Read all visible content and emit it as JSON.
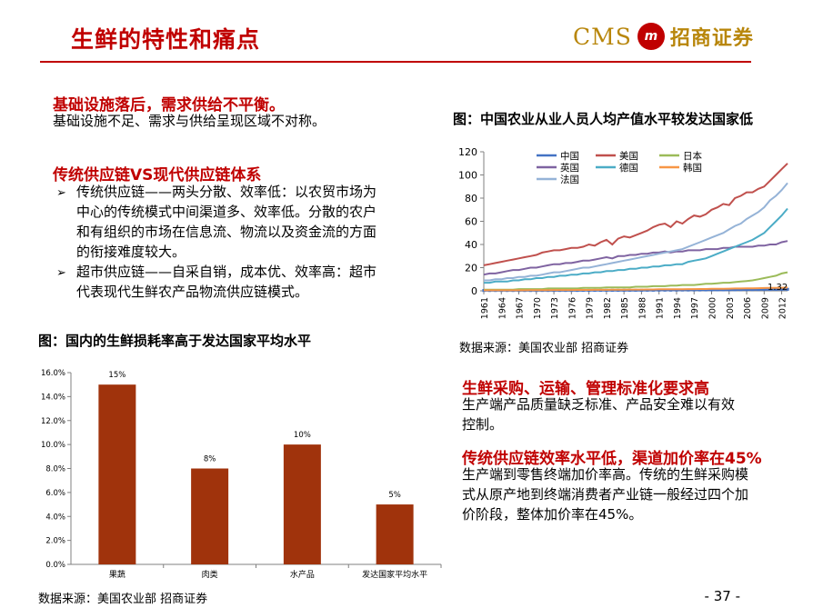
{
  "header": {
    "title": "生鲜的特性和痛点",
    "logo_latin": "CMS",
    "logo_seal": "m",
    "logo_cn": "招商证券"
  },
  "left": {
    "section1": {
      "heading": "基础设施落后，需求供给不平衡。",
      "body": "基础设施不足、需求与供给呈现区域不对称。"
    },
    "section2": {
      "heading": "传统供应链VS现代供应链体系",
      "bullets": [
        {
          "lines": [
            "传统供应链——两头分散、效率低：以农贸市场为",
            "中心的传统模式中间渠道多、效率低。分散的农户",
            "和有组织的市场在信息流、物流以及资金流的方面",
            "的衔接难度较大。"
          ]
        },
        {
          "lines": [
            "超市供应链——自采自销，成本优、效率高：超市",
            "代表现代生鲜农产品物流供应链模式。"
          ]
        }
      ]
    }
  },
  "right": {
    "section3": {
      "heading": "生鲜采购、运输、管理标准化要求高",
      "lines": [
        "生产端产品质量缺乏标准、产品安全难以有效",
        "控制。"
      ]
    },
    "section4": {
      "heading": "传统供应链效率水平低，渠道加价率在45%",
      "lines": [
        "生产端到零售终端加价率高。传统的生鲜采购模",
        "式从原产地到终端消费者产业链一般经过四个加",
        "价阶段，整体加价率在45%。"
      ]
    }
  },
  "footer": {
    "page": "- 37 -"
  },
  "chart_data": [
    {
      "type": "line",
      "title": "图：中国农业从业人员人均产值水平较发达国家低",
      "source": "数据来源：美国农业部 招商证券",
      "ylim": [
        0,
        120
      ],
      "yticks": [
        "0",
        "20",
        "40",
        "60",
        "80",
        "100",
        "120"
      ],
      "x": [
        1961,
        1962,
        1963,
        1964,
        1965,
        1966,
        1967,
        1968,
        1969,
        1970,
        1971,
        1972,
        1973,
        1974,
        1975,
        1976,
        1977,
        1978,
        1979,
        1980,
        1981,
        1982,
        1983,
        1984,
        1985,
        1986,
        1987,
        1988,
        1989,
        1990,
        1991,
        1992,
        1993,
        1994,
        1995,
        1996,
        1997,
        1998,
        1999,
        2000,
        2001,
        2002,
        2003,
        2004,
        2005,
        2006,
        2007,
        2008,
        2009,
        2010,
        2011,
        2012,
        2013
      ],
      "xtick_labels": [
        "1961",
        "1964",
        "1967",
        "1970",
        "1973",
        "1976",
        "1979",
        "1982",
        "1985",
        "1988",
        "1991",
        "1994",
        "1997",
        "2000",
        "2003",
        "2006",
        "2009",
        "2012"
      ],
      "legend": [
        "中国",
        "美国",
        "日本",
        "英国",
        "德国",
        "韩国",
        "法国"
      ],
      "end_label": "1.32",
      "grid": false,
      "series": [
        {
          "name": "中国",
          "color": "#4472c4",
          "values": [
            0.3,
            0.3,
            0.3,
            0.3,
            0.3,
            0.3,
            0.3,
            0.3,
            0.3,
            0.3,
            0.35,
            0.35,
            0.35,
            0.35,
            0.35,
            0.35,
            0.35,
            0.4,
            0.4,
            0.4,
            0.4,
            0.45,
            0.45,
            0.45,
            0.5,
            0.5,
            0.5,
            0.5,
            0.55,
            0.55,
            0.6,
            0.6,
            0.6,
            0.65,
            0.7,
            0.7,
            0.75,
            0.75,
            0.8,
            0.8,
            0.85,
            0.85,
            0.9,
            0.95,
            1.0,
            1.0,
            1.05,
            1.1,
            1.15,
            1.2,
            1.25,
            1.3,
            1.32
          ]
        },
        {
          "name": "美国",
          "color": "#c0504d",
          "values": [
            22,
            23,
            24,
            25,
            26,
            27,
            28,
            29,
            30,
            31,
            33,
            34,
            35,
            35,
            36,
            37,
            37,
            38,
            40,
            39,
            42,
            44,
            40,
            45,
            47,
            46,
            48,
            50,
            52,
            55,
            57,
            58,
            55,
            60,
            58,
            62,
            65,
            64,
            66,
            70,
            72,
            75,
            74,
            80,
            82,
            85,
            85,
            88,
            90,
            95,
            100,
            105,
            110
          ]
        },
        {
          "name": "日本",
          "color": "#9bbb59",
          "values": [
            1,
            1,
            1,
            1,
            1,
            1,
            1.5,
            1.5,
            1.5,
            1.5,
            1.5,
            2,
            2,
            2,
            2,
            2,
            2,
            2.5,
            2.5,
            2.5,
            2.5,
            3,
            3,
            3,
            3,
            3,
            3.5,
            3.5,
            3.5,
            4,
            4,
            4,
            4.5,
            4.5,
            5,
            5,
            5,
            5.5,
            6,
            6,
            6.5,
            7,
            7,
            7.5,
            8,
            8.5,
            9,
            10,
            11,
            12,
            13,
            15,
            16
          ]
        },
        {
          "name": "英国",
          "color": "#7f63a1",
          "values": [
            14,
            15,
            15,
            16,
            17,
            18,
            18,
            19,
            20,
            20,
            21,
            22,
            23,
            23,
            24,
            24,
            25,
            26,
            26,
            27,
            28,
            29,
            28,
            30,
            30,
            31,
            31,
            32,
            32,
            33,
            33,
            34,
            33,
            34,
            34,
            35,
            35,
            35,
            36,
            36,
            36,
            37,
            37,
            38,
            38,
            38,
            38,
            39,
            39,
            40,
            40,
            42,
            43
          ]
        },
        {
          "name": "德国",
          "color": "#4bacc6",
          "values": [
            7,
            7,
            8,
            8,
            8,
            9,
            9,
            10,
            10,
            11,
            11,
            12,
            12,
            13,
            13,
            14,
            14,
            15,
            15,
            16,
            16,
            17,
            17,
            18,
            18,
            19,
            19,
            20,
            20,
            21,
            21,
            22,
            22,
            23,
            23,
            25,
            26,
            27,
            28,
            30,
            32,
            34,
            36,
            38,
            40,
            42,
            44,
            47,
            50,
            55,
            60,
            65,
            71
          ]
        },
        {
          "name": "韩国",
          "color": "#f79646",
          "values": [
            0.5,
            0.5,
            0.5,
            0.5,
            0.5,
            0.5,
            0.5,
            0.5,
            0.6,
            0.6,
            0.6,
            0.6,
            0.7,
            0.7,
            0.7,
            0.7,
            0.8,
            0.8,
            0.8,
            0.9,
            0.9,
            0.9,
            1.0,
            1.0,
            1.0,
            1.1,
            1.1,
            1.1,
            1.2,
            1.2,
            1.3,
            1.3,
            1.3,
            1.4,
            1.4,
            1.5,
            1.5,
            1.6,
            1.6,
            1.7,
            1.8,
            1.8,
            1.9,
            2.0,
            2.0,
            2.1,
            2.2,
            2.3,
            2.4,
            2.5,
            2.6,
            2.7,
            2.8
          ]
        },
        {
          "name": "法国",
          "color": "#95b3d7",
          "values": [
            9,
            9,
            10,
            10,
            11,
            11,
            12,
            12,
            13,
            13,
            14,
            15,
            16,
            16,
            17,
            18,
            19,
            20,
            20,
            21,
            22,
            23,
            24,
            25,
            26,
            27,
            28,
            29,
            30,
            31,
            32,
            33,
            34,
            35,
            36,
            38,
            40,
            42,
            44,
            46,
            48,
            50,
            53,
            56,
            58,
            62,
            65,
            68,
            72,
            78,
            82,
            87,
            93
          ]
        }
      ]
    },
    {
      "type": "bar",
      "title": "图：国内的生鲜损耗率高于发达国家平均水平",
      "source": "数据来源：美国农业部 招商证券",
      "categories": [
        "果蔬",
        "肉类",
        "水产品",
        "发达国家平均水平"
      ],
      "values": [
        15,
        8,
        10,
        5
      ],
      "value_labels": [
        "15%",
        "8%",
        "10%",
        "5%"
      ],
      "ylim": [
        0,
        16
      ],
      "yticks": [
        "0.0%",
        "2.0%",
        "4.0%",
        "6.0%",
        "8.0%",
        "10.0%",
        "12.0%",
        "14.0%",
        "16.0%"
      ],
      "color": "#a0330c",
      "grid": false
    }
  ]
}
